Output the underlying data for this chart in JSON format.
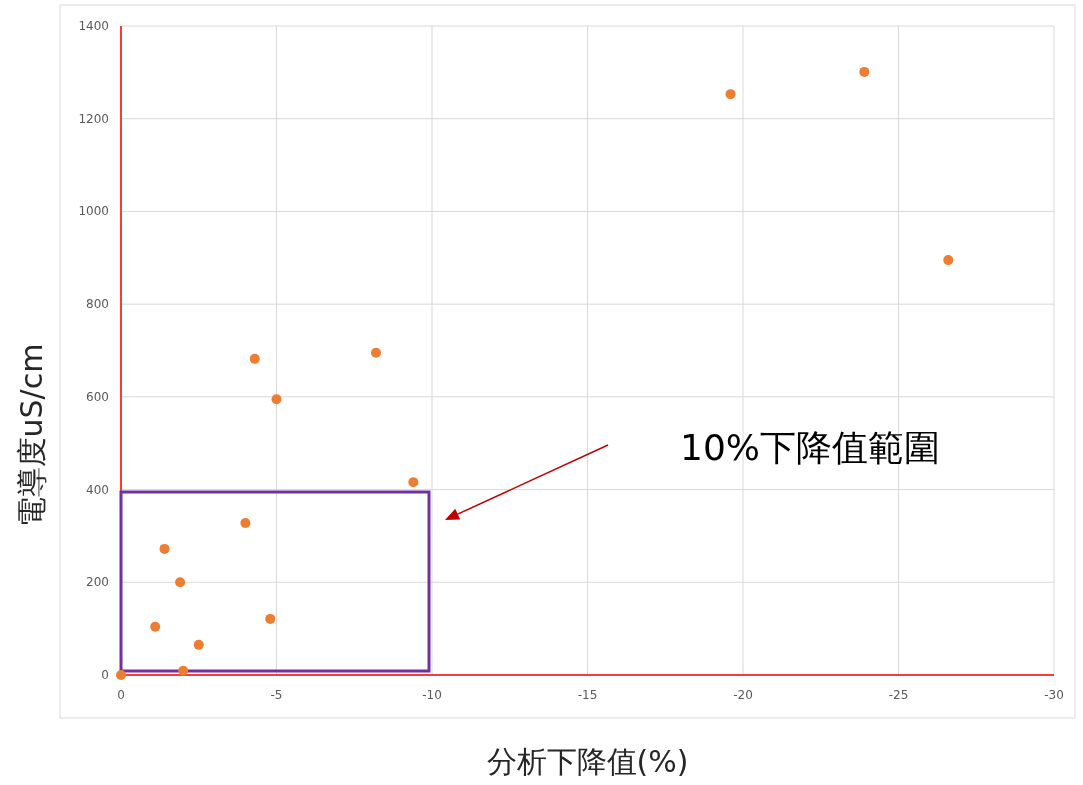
{
  "chart_data": {
    "type": "scatter",
    "xlabel": "分析下降值(%)",
    "ylabel": "電導度uS/cm",
    "x": [
      0,
      -1.1,
      -1.4,
      -1.9,
      -2.0,
      -2.5,
      -4.0,
      -4.3,
      -4.8,
      -5.0,
      -8.2,
      -9.4,
      -19.6,
      -23.9,
      -26.6
    ],
    "series": [
      {
        "color": "#ed7d31",
        "values": [
          0,
          104,
          272,
          200,
          9,
          65,
          328,
          682,
          121,
          595,
          695,
          416,
          1253,
          1301,
          895
        ]
      }
    ],
    "xlim": [
      0,
      -30
    ],
    "xticks": [
      0,
      -5,
      -10,
      -15,
      -20,
      -25,
      -30
    ],
    "ylim": [
      0,
      1400
    ],
    "yticks": [
      0,
      200,
      400,
      600,
      800,
      1000,
      1200,
      1400
    ],
    "grid": true,
    "marker": "circle",
    "annotations": [
      "10%下降值範圍"
    ]
  }
}
